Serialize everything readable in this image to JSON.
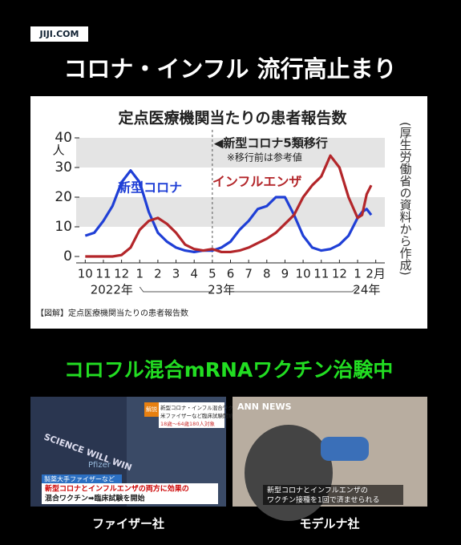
{
  "header": {
    "logo": "JIJI.COM",
    "title": "コロナ・インフル 流行高止まり"
  },
  "chart_data": {
    "type": "line",
    "title": "定点医療機関当たりの患者報告数",
    "x": [
      0,
      0.5,
      1,
      1.5,
      2,
      2.5,
      3,
      3.5,
      4,
      4.5,
      5,
      5.5,
      6,
      6.5,
      7,
      7.5,
      8,
      8.5,
      9,
      9.5,
      10,
      10.5,
      11,
      11.5,
      12,
      12.5,
      13,
      13.5,
      14,
      14.5,
      15,
      15.25,
      15.5,
      15.75
    ],
    "series": [
      {
        "name": "新型コロナ",
        "color": "#1f3fd6",
        "values": [
          7,
          8,
          12,
          17,
          25,
          29,
          25,
          15,
          8,
          5,
          3,
          2,
          1.5,
          2,
          2,
          3,
          5,
          9,
          12,
          16,
          17,
          20,
          20,
          14,
          7,
          3,
          2,
          2.5,
          4,
          7,
          13,
          15,
          16,
          14
        ]
      },
      {
        "name": "インフルエンザ",
        "color": "#b3262a",
        "values": [
          0,
          0,
          0,
          0,
          0.5,
          3,
          9,
          12,
          13,
          11,
          8,
          4,
          2.5,
          2,
          2.5,
          1.5,
          1.5,
          2,
          3,
          4.5,
          6,
          8,
          11,
          14,
          20,
          24,
          27,
          34,
          30,
          20,
          13,
          14,
          21,
          24
        ]
      }
    ],
    "xlim": [
      -0.5,
      16.5
    ],
    "xticks": [
      {
        "value": 0,
        "label": "10"
      },
      {
        "value": 1,
        "label": "11"
      },
      {
        "value": 2,
        "label": "12"
      },
      {
        "value": 3,
        "label": "1"
      },
      {
        "value": 4,
        "label": "2"
      },
      {
        "value": 5,
        "label": "3"
      },
      {
        "value": 6,
        "label": "4"
      },
      {
        "value": 7,
        "label": "5"
      },
      {
        "value": 8,
        "label": "6"
      },
      {
        "value": 9,
        "label": "7"
      },
      {
        "value": 10,
        "label": "8"
      },
      {
        "value": 11,
        "label": "9"
      },
      {
        "value": 12,
        "label": "10"
      },
      {
        "value": 13,
        "label": "11"
      },
      {
        "value": 14,
        "label": "12"
      },
      {
        "value": 15,
        "label": "1"
      },
      {
        "value": 16,
        "label": "2月"
      }
    ],
    "ylim": [
      0,
      40
    ],
    "yticks": [
      0,
      10,
      20,
      30,
      40
    ],
    "y_unit": "人",
    "year_labels": [
      "2022年",
      "23年",
      "24年"
    ],
    "annotations": [
      "◀新型コロナ5類移行",
      "※移行前は参考値"
    ],
    "source": "(厚生労働省の資料から作成)",
    "caption": "【図解】定点医療機関当たりの患者報告数"
  },
  "subtitle": "コロフル混合mRNAワクチン治験中",
  "photos": [
    {
      "caption": "ファイザー社",
      "texts": [
        "SCIENCE WILL WIN",
        "Pfizer",
        "解説",
        "新型コロナ・インフル混合ワクチン",
        "米ファイザーなど臨床試験開始",
        "18歳～64歳180人対象",
        "製薬大手ファイザーなど",
        "新型コロナとインフルエンザの両方に効果の",
        "混合ワクチン➡臨床試験を開始"
      ]
    },
    {
      "caption": "モデルナ社",
      "texts": [
        "ANN NEWS",
        "新型コロナとインフルエンザの",
        "ワクチン接種を1回で済ませられる"
      ]
    }
  ]
}
